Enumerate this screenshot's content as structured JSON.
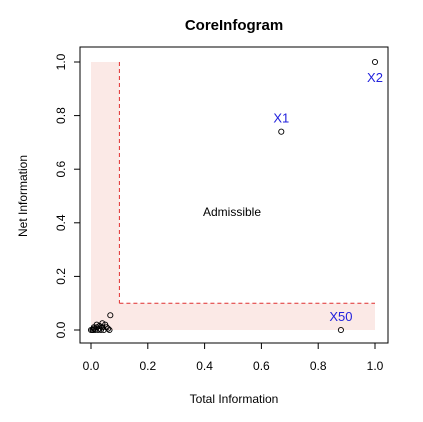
{
  "chart_data": {
    "type": "scatter",
    "title": "CoreInfogram",
    "xlabel": "Total Information",
    "ylabel": "Net Information",
    "xlim": [
      0,
      1
    ],
    "ylim": [
      0,
      1
    ],
    "xticks": [
      0.0,
      0.2,
      0.4,
      0.6,
      0.8,
      1.0
    ],
    "yticks": [
      0.0,
      0.2,
      0.4,
      0.6,
      0.8,
      1.0
    ],
    "xtick_labels": [
      "0.0",
      "0.2",
      "0.4",
      "0.6",
      "0.8",
      "1.0"
    ],
    "ytick_labels": [
      "0.0",
      "0.2",
      "0.4",
      "0.6",
      "0.8",
      "1.0"
    ],
    "grid": false,
    "thresholds": {
      "total": 0.1,
      "net": 0.1
    },
    "admissible_label": "Admissible",
    "colors": {
      "point_label": "#2222dd",
      "threshold_line": "#e03030",
      "inadmissible_fill": "#fbe9e6"
    },
    "labeled_points": [
      {
        "label": "X1",
        "x": 0.67,
        "y": 0.74
      },
      {
        "label": "X2",
        "x": 1.0,
        "y": 1.0
      },
      {
        "label": "X50",
        "x": 0.88,
        "y": 0.0
      }
    ],
    "other_points": [
      {
        "x": 0.0,
        "y": 0.0
      },
      {
        "x": 0.005,
        "y": 0.0
      },
      {
        "x": 0.01,
        "y": 0.005
      },
      {
        "x": 0.015,
        "y": 0.0
      },
      {
        "x": 0.02,
        "y": 0.01
      },
      {
        "x": 0.025,
        "y": 0.0
      },
      {
        "x": 0.03,
        "y": 0.005
      },
      {
        "x": 0.035,
        "y": 0.0
      },
      {
        "x": 0.04,
        "y": 0.01
      },
      {
        "x": 0.045,
        "y": 0.0
      },
      {
        "x": 0.05,
        "y": 0.02
      },
      {
        "x": 0.055,
        "y": 0.01
      },
      {
        "x": 0.06,
        "y": 0.005
      },
      {
        "x": 0.065,
        "y": 0.0
      },
      {
        "x": 0.068,
        "y": 0.055
      },
      {
        "x": 0.02,
        "y": 0.02
      },
      {
        "x": 0.03,
        "y": 0.015
      },
      {
        "x": 0.01,
        "y": 0.01
      },
      {
        "x": 0.04,
        "y": 0.025
      },
      {
        "x": 0.008,
        "y": 0.0
      }
    ]
  }
}
